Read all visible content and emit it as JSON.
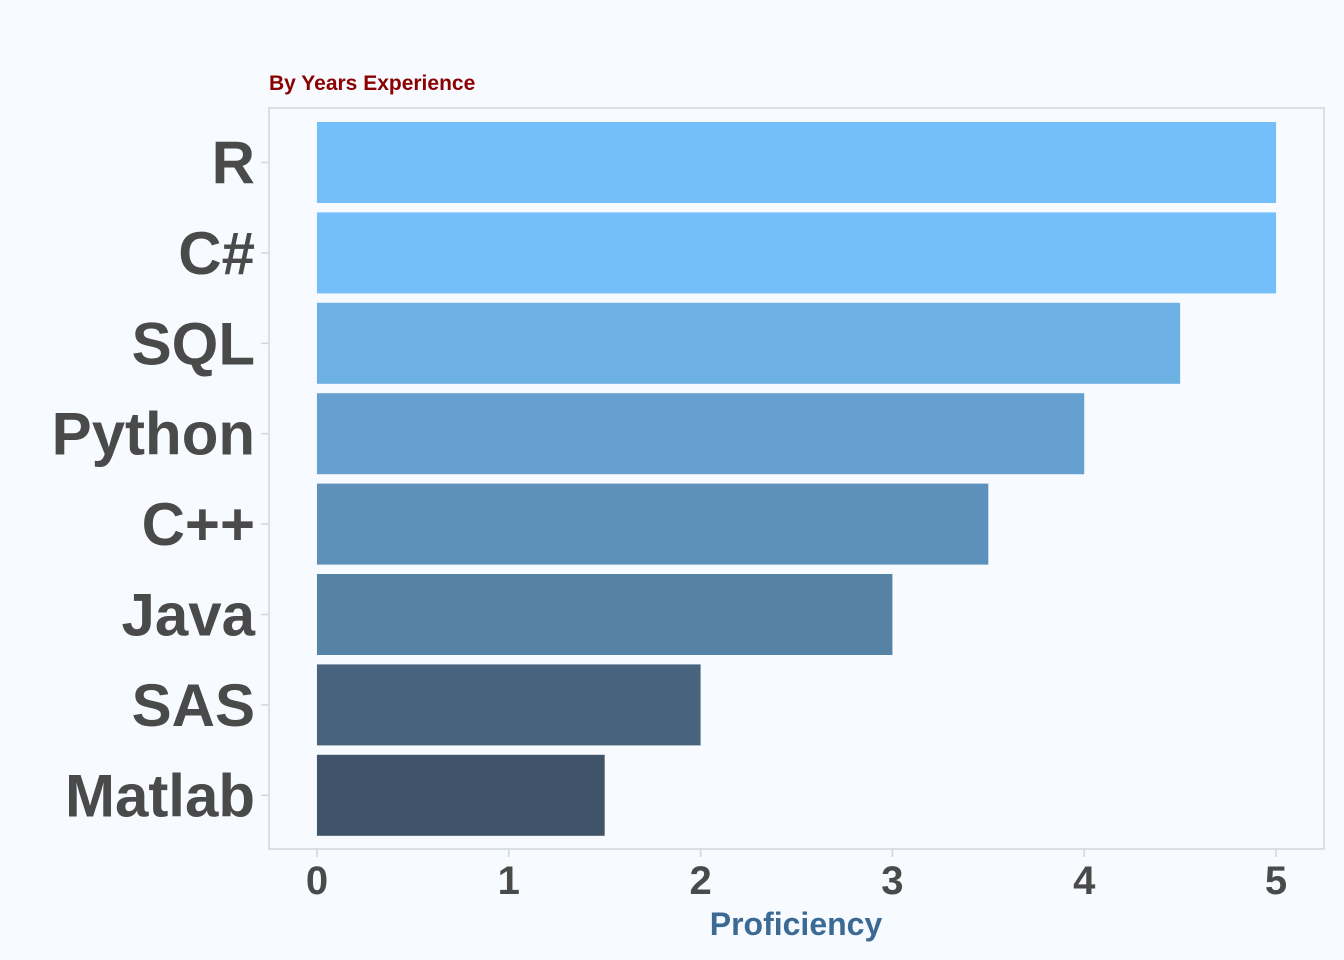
{
  "chart_data": {
    "type": "bar",
    "orientation": "horizontal",
    "subtitle": "By Years Experience",
    "xlabel": "Proficiency",
    "ylabel": "",
    "categories": [
      "R",
      "C#",
      "SQL",
      "Python",
      "C++",
      "Java",
      "SAS",
      "Matlab"
    ],
    "values": [
      5,
      5,
      4.5,
      4,
      3.5,
      3,
      2,
      1.5
    ],
    "xlim": [
      -0.25,
      5.25
    ],
    "xticks": [
      0,
      1,
      2,
      3,
      4,
      5
    ],
    "grid": false,
    "legend": "none",
    "colors": {
      "bar_high": "#74bff9",
      "bar_low": "#3f5468",
      "subtitle": "#8b0000",
      "xlabel": "#3b6a94",
      "panel_border": "#d0d7de",
      "text": "#4a4a4a"
    }
  }
}
